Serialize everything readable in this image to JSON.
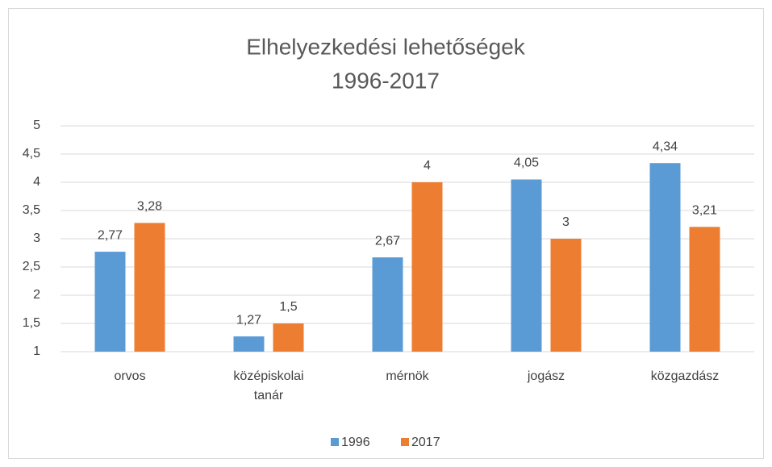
{
  "chart_data": {
    "type": "bar",
    "title": "Elhelyezkedési lehetőségek",
    "subtitle": "1996-2017",
    "categories": [
      "orvos",
      "középiskolai tanár",
      "mérnök",
      "jogász",
      "közgazdász"
    ],
    "series": [
      {
        "name": "1996",
        "color": "#5b9bd5",
        "values": [
          2.77,
          1.27,
          2.67,
          4.05,
          4.34
        ],
        "value_labels": [
          "2,77",
          "1,27",
          "2,67",
          "4,05",
          "4,34"
        ]
      },
      {
        "name": "2017",
        "color": "#ed7d31",
        "values": [
          3.28,
          1.5,
          4,
          3,
          3.21
        ],
        "value_labels": [
          "3,28",
          "1,5",
          "4",
          "3",
          "3,21"
        ]
      }
    ],
    "ylim": [
      1,
      5
    ],
    "yticks": [
      1,
      {
        "value": 1.5,
        "label": "1,5"
      },
      2,
      {
        "value": 2.5,
        "label": "2,5"
      },
      3,
      {
        "value": 3.5,
        "label": "3,5"
      },
      4,
      {
        "value": 4.5,
        "label": "4,5"
      },
      5
    ],
    "grid": true,
    "legend": "bottom"
  }
}
